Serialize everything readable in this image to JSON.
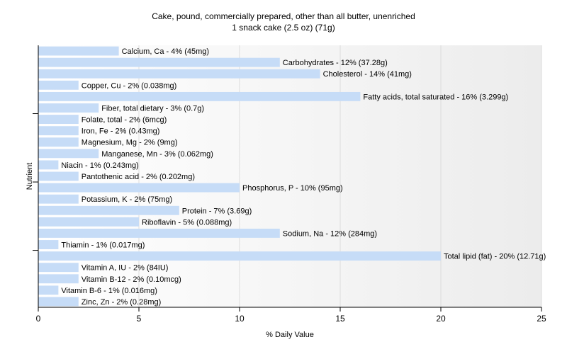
{
  "title": "Cake, pound, commercially prepared, other than all butter, unenriched",
  "subtitle": "1 snack cake (2.5 oz) (71g)",
  "chart_data": {
    "type": "bar",
    "orientation": "horizontal",
    "title": "Cake, pound, commercially prepared, other than all butter, unenriched",
    "subtitle": "1 snack cake (2.5 oz) (71g)",
    "xlabel": "% Daily Value",
    "ylabel": "Nutrient",
    "xlim": [
      0,
      25
    ],
    "xticks": [
      0,
      5,
      10,
      15,
      20,
      25
    ],
    "grid": "vertical",
    "bar_color": "#c6dcf7",
    "categories": [
      "Calcium, Ca",
      "Carbohydrates",
      "Cholesterol",
      "Copper, Cu",
      "Fatty acids, total saturated",
      "Fiber, total dietary",
      "Folate, total",
      "Iron, Fe",
      "Magnesium, Mg",
      "Manganese, Mn",
      "Niacin",
      "Pantothenic acid",
      "Phosphorus, P",
      "Potassium, K",
      "Protein",
      "Riboflavin",
      "Sodium, Na",
      "Thiamin",
      "Total lipid (fat)",
      "Vitamin A, IU",
      "Vitamin B-12",
      "Vitamin B-6",
      "Zinc, Zn"
    ],
    "values": [
      4,
      12,
      14,
      2,
      16,
      3,
      2,
      2,
      2,
      3,
      1,
      2,
      10,
      2,
      7,
      5,
      12,
      1,
      20,
      2,
      2,
      1,
      2
    ],
    "labels": [
      "Calcium, Ca - 4% (45mg)",
      "Carbohydrates - 12% (37.28g)",
      "Cholesterol - 14% (41mg)",
      "Copper, Cu - 2% (0.038mg)",
      "Fatty acids, total saturated - 16% (3.299g)",
      "Fiber, total dietary - 3% (0.7g)",
      "Folate, total - 2% (6mcg)",
      "Iron, Fe - 2% (0.43mg)",
      "Magnesium, Mg - 2% (9mg)",
      "Manganese, Mn - 3% (0.062mg)",
      "Niacin - 1% (0.243mg)",
      "Pantothenic acid - 2% (0.202mg)",
      "Phosphorus, P - 10% (95mg)",
      "Potassium, K - 2% (75mg)",
      "Protein - 7% (3.69g)",
      "Riboflavin - 5% (0.088mg)",
      "Sodium, Na - 12% (284mg)",
      "Thiamin - 1% (0.017mg)",
      "Total lipid (fat) - 20% (12.71g)",
      "Vitamin A, IU - 2% (84IU)",
      "Vitamin B-12 - 2% (0.10mcg)",
      "Vitamin B-6 - 1% (0.016mg)",
      "Zinc, Zn - 2% (0.28mg)"
    ]
  }
}
